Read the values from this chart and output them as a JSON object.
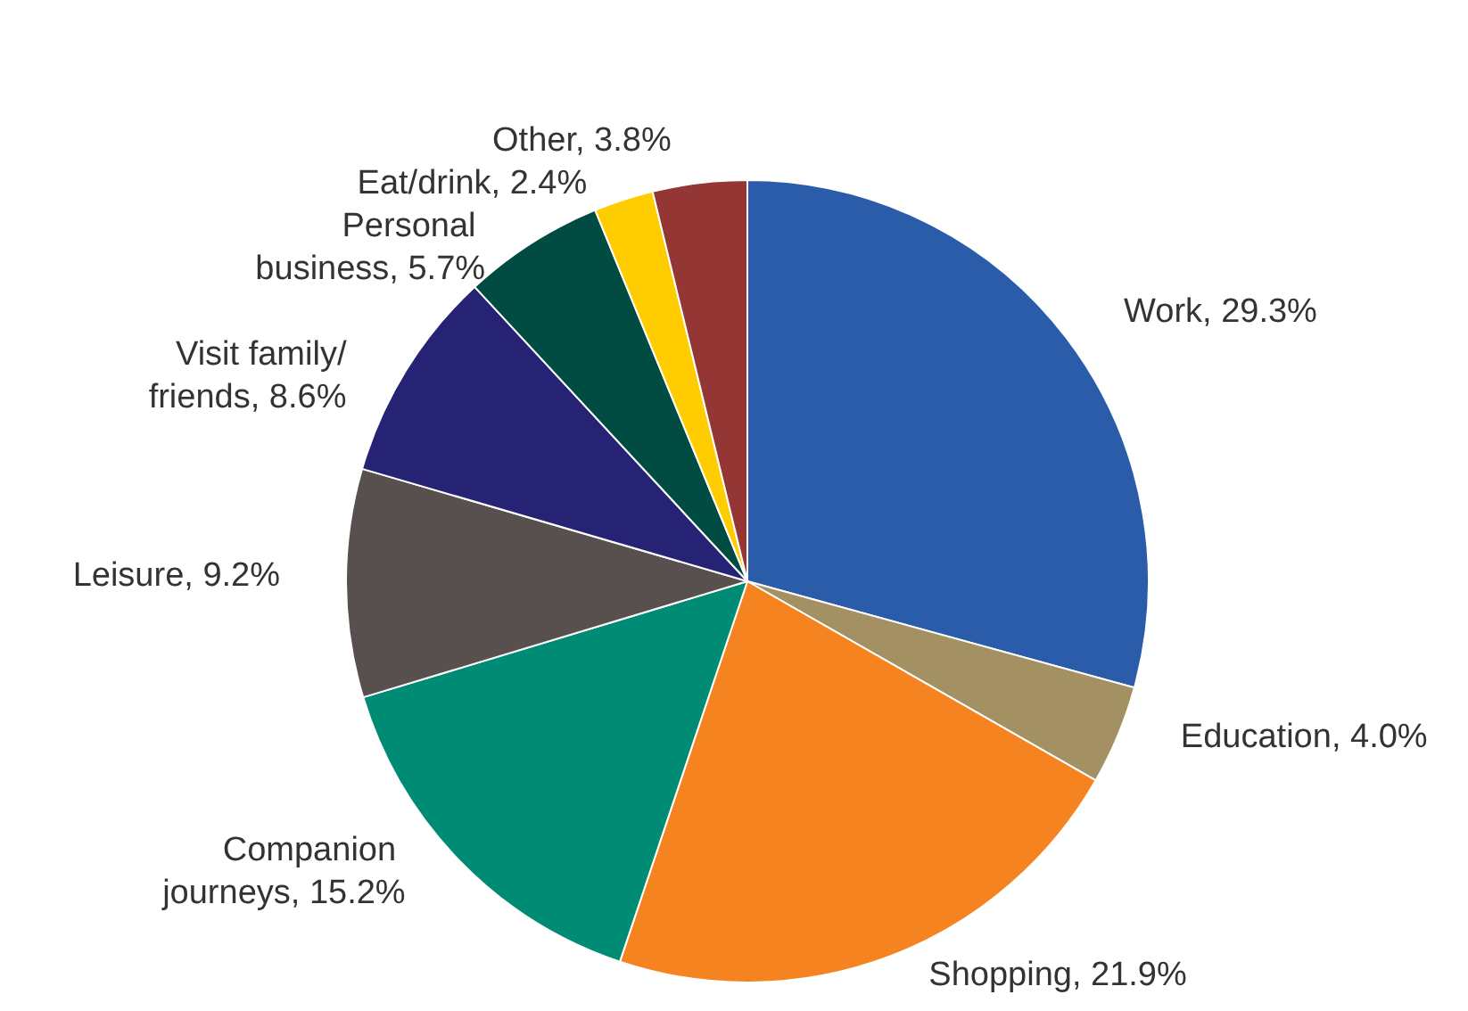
{
  "chart_data": {
    "type": "pie",
    "categories": [
      "Work",
      "Education",
      "Shopping",
      "Companion journeys",
      "Leisure",
      "Visit family/friends",
      "Personal business",
      "Eat/drink",
      "Other"
    ],
    "values": [
      29.3,
      4.0,
      21.9,
      15.2,
      9.2,
      8.6,
      5.7,
      2.4,
      3.8
    ],
    "value_labels": [
      "29.3%",
      "4.0%",
      "21.9%",
      "15.2%",
      "9.2%",
      "8.6%",
      "5.7%",
      "2.4%",
      "3.8%"
    ],
    "colors": [
      "#2a5caa",
      "#a39163",
      "#f58420",
      "#008c74",
      "#58504f",
      "#262375",
      "#004c42",
      "#ffcc00",
      "#943634"
    ],
    "legend": false
  }
}
